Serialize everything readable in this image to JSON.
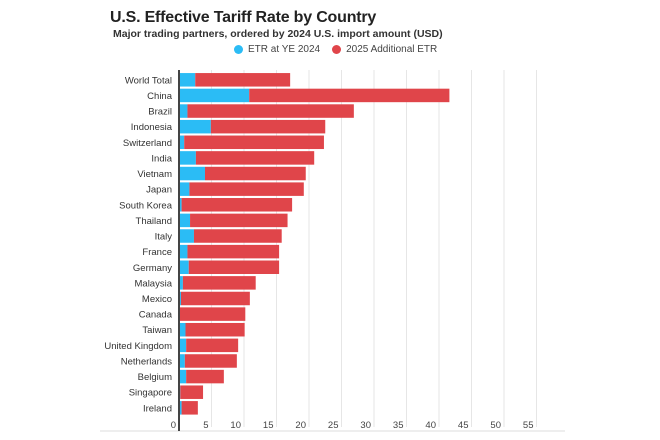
{
  "colors": {
    "base": "#2bbcf5",
    "additional": "#e0454a",
    "axis": "#444444",
    "grid": "#e6e6e6"
  },
  "chart_data": {
    "type": "bar",
    "orientation": "horizontal",
    "stacked": true,
    "title": "U.S. Effective Tariff Rate by Country",
    "subtitle": "Major trading partners, ordered by 2024 U.S. import amount (USD)",
    "xlabel": "",
    "ylabel": "",
    "xlim": [
      0,
      60
    ],
    "xticks": [
      0,
      5,
      10,
      15,
      20,
      25,
      30,
      35,
      40,
      45,
      50,
      55
    ],
    "grid": true,
    "legend_position": "top-center",
    "categories": [
      "World Total",
      "China",
      "Brazil",
      "Indonesia",
      "Switzerland",
      "India",
      "Vietnam",
      "Japan",
      "South Korea",
      "Thailand",
      "Italy",
      "France",
      "Germany",
      "Malaysia",
      "Mexico",
      "Canada",
      "Taiwan",
      "United Kingdom",
      "Netherlands",
      "Belgium",
      "Singapore",
      "Ireland"
    ],
    "series": [
      {
        "name": "ETR at YE 2024",
        "values": [
          2.5,
          10.8,
          1.3,
          4.9,
          0.8,
          2.6,
          4.0,
          1.6,
          0.4,
          1.7,
          2.3,
          1.3,
          1.5,
          0.6,
          0.3,
          0.1,
          1.0,
          1.1,
          0.9,
          1.1,
          0.2,
          0.4
        ]
      },
      {
        "name": "2025 Additional ETR",
        "values": [
          14.6,
          30.8,
          25.6,
          17.6,
          21.5,
          18.2,
          15.5,
          17.6,
          17.0,
          15.0,
          13.5,
          14.1,
          13.9,
          11.2,
          10.6,
          10.1,
          9.1,
          8.0,
          8.0,
          5.8,
          3.5,
          2.5
        ]
      }
    ]
  }
}
